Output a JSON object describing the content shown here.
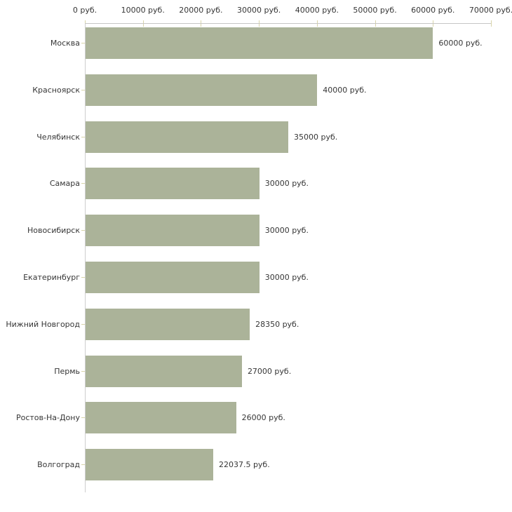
{
  "chart_data": {
    "type": "bar",
    "orientation": "horizontal",
    "title": "",
    "xlabel": "",
    "ylabel": "",
    "grid": false,
    "legend": "none",
    "bar_color": "#abb399",
    "tick_color": "#d8d4a9",
    "axis_line_color": "#c6c6c6",
    "categories": [
      "Москва",
      "Красноярск",
      "Челябинск",
      "Самара",
      "Новосибирск",
      "Екатеринбург",
      "Нижний Новгород",
      "Пермь",
      "Ростов-На-Дону",
      "Волгоград"
    ],
    "values": [
      60000,
      40000,
      35000,
      30000,
      30000,
      30000,
      28350,
      27000,
      26000,
      22037.5
    ],
    "value_labels": [
      "60000 руб.",
      "40000 руб.",
      "35000 руб.",
      "30000 руб.",
      "30000 руб.",
      "30000 руб.",
      "28350 руб.",
      "27000 руб.",
      "26000 руб.",
      "22037.5 руб."
    ],
    "x_axis": {
      "min": 0,
      "max": 70000,
      "tick_step": 10000,
      "tick_labels": [
        "0 руб.",
        "10000 руб.",
        "20000 руб.",
        "30000 руб.",
        "40000 руб.",
        "50000 руб.",
        "60000 руб.",
        "70000 руб."
      ]
    }
  }
}
